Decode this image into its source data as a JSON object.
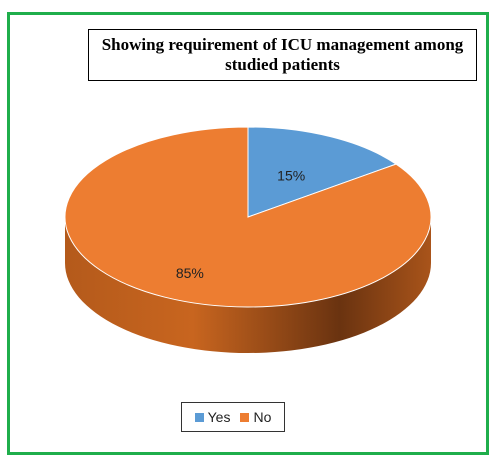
{
  "chart_data": {
    "type": "pie",
    "title": "Showing requirement of ICU management among studied patients",
    "categories": [
      "Yes",
      "No"
    ],
    "values": [
      15,
      85
    ],
    "labels": [
      "15%",
      "85%"
    ],
    "colors": [
      "#5b9bd5",
      "#ed7d31"
    ],
    "legend_position": "bottom",
    "style": "3d"
  },
  "frame_color": "#1fae4b"
}
